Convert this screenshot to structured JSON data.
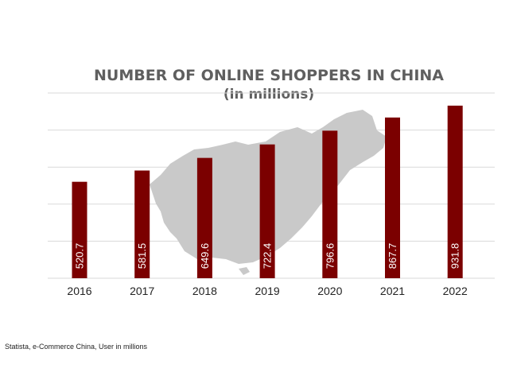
{
  "chart_data": {
    "type": "bar",
    "title": "NUMBER OF ONLINE SHOPPERS IN CHINA",
    "subtitle": "(in millions)",
    "categories": [
      "2016",
      "2017",
      "2018",
      "2019",
      "2020",
      "2021",
      "2022"
    ],
    "series": [
      {
        "values": [
          520.7,
          581.5,
          649.6,
          722.4,
          796.6,
          867.7,
          931.8
        ]
      }
    ],
    "data_labels": [
      "520.7",
      "581.5",
      "649.6",
      "722.4",
      "796.6",
      "867.7",
      "931.8"
    ],
    "ylim": [
      0,
      1000
    ],
    "grid": true,
    "legend": "none",
    "bar_color": "#7b0000",
    "background_decoration": "map-of-china-silhouette"
  },
  "source": "Statista, e-Commerce China, User in millions"
}
